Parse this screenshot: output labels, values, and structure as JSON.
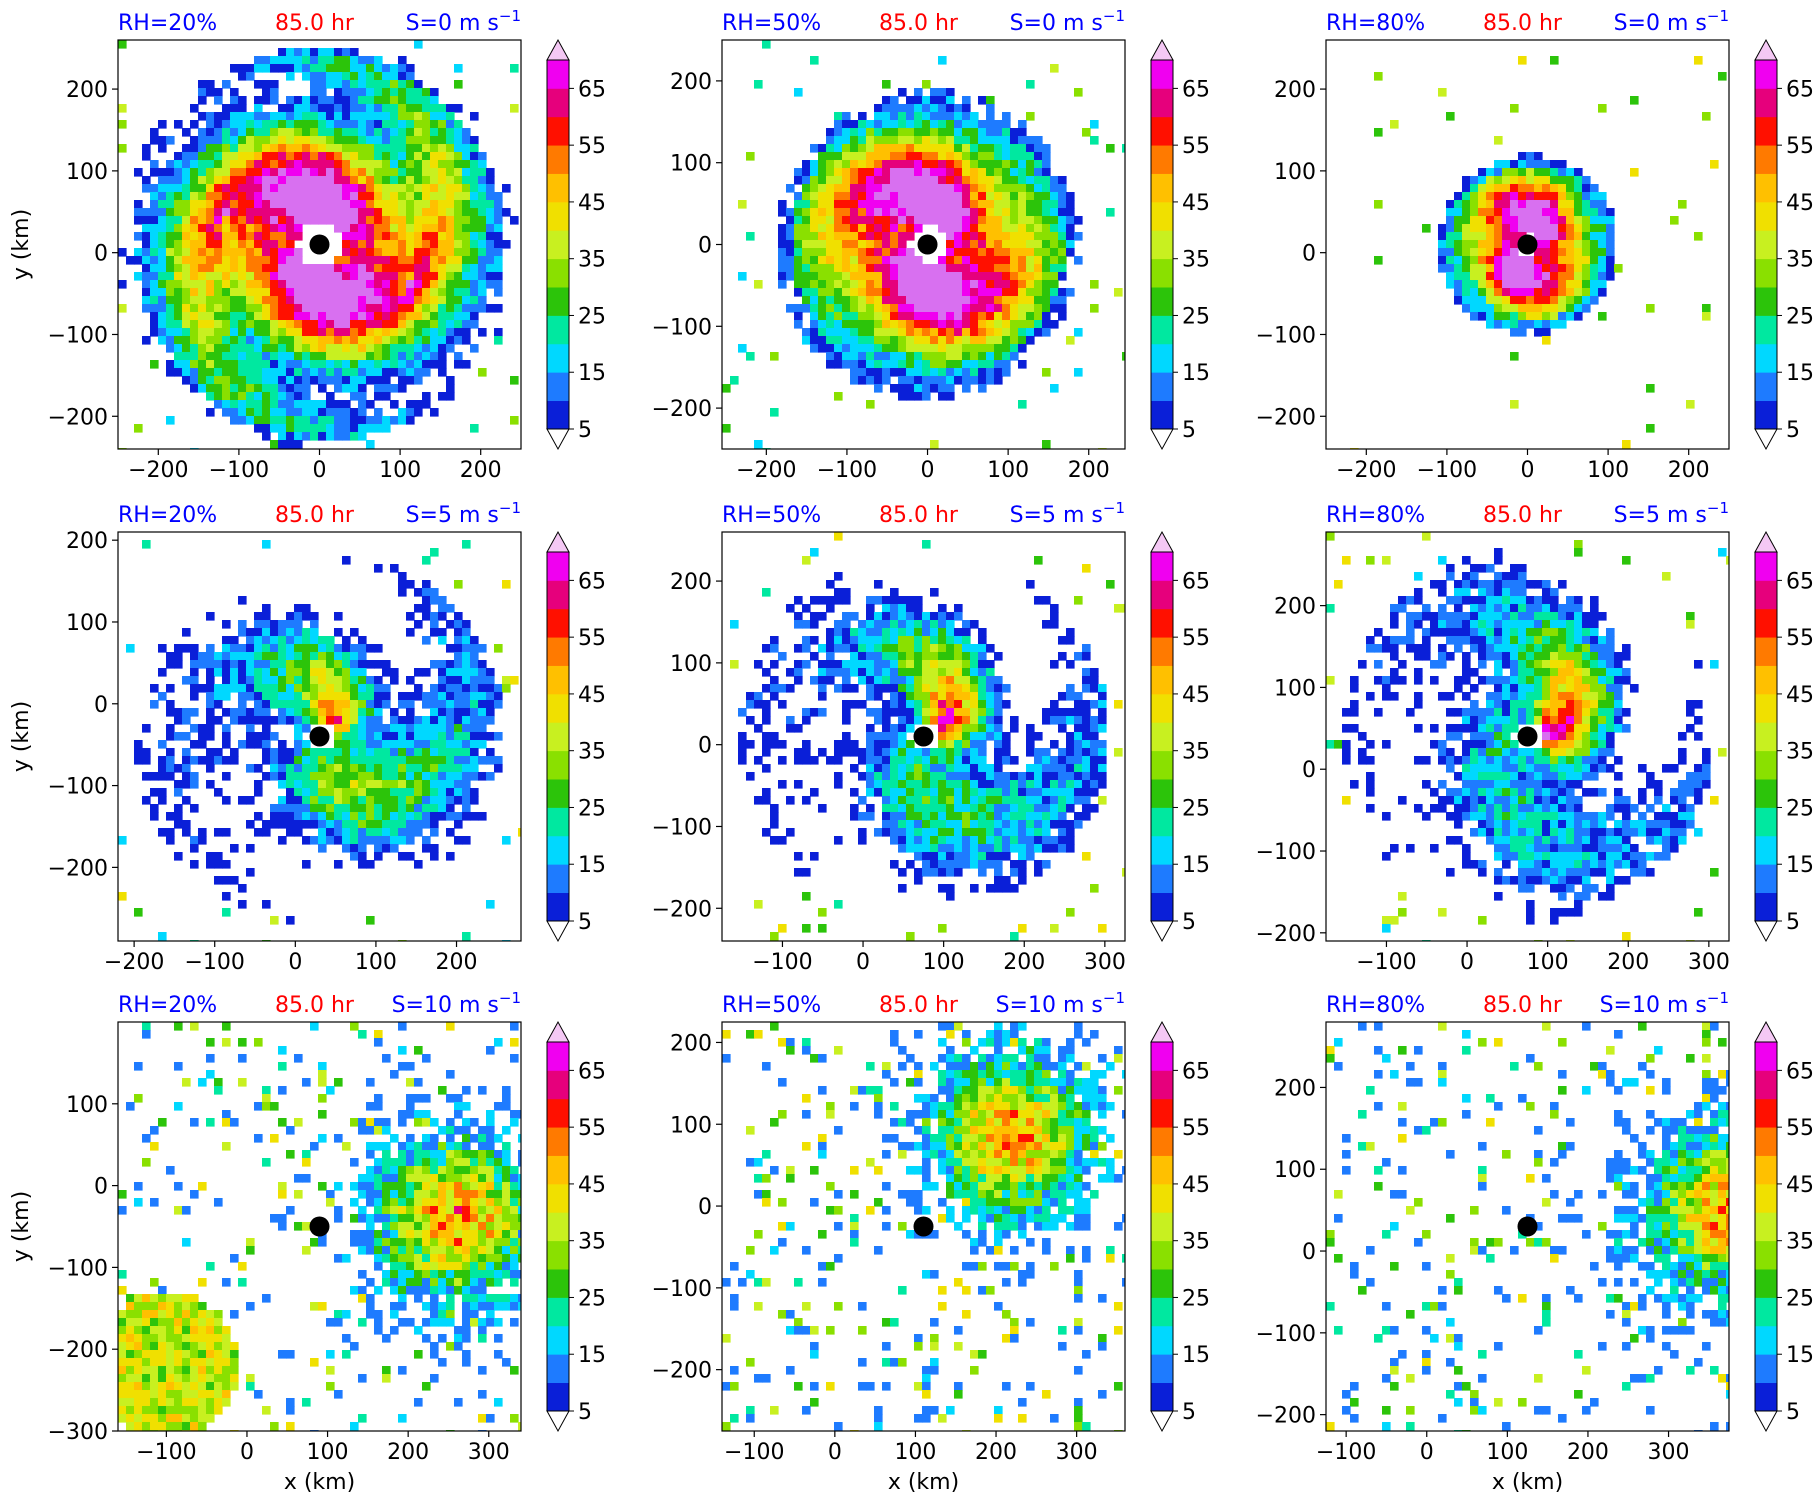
{
  "figure": {
    "rows": [
      {
        "shear_label": "S=0 m s",
        "shear_exp": "−1"
      },
      {
        "shear_label": "S=5 m s",
        "shear_exp": "−1"
      },
      {
        "shear_label": "S=10 m s",
        "shear_exp": "−1"
      }
    ],
    "cols": [
      {
        "rh_label": "RH=20%"
      },
      {
        "rh_label": "RH=50%"
      },
      {
        "rh_label": "RH=80%"
      }
    ],
    "time_label": "85.0 hr",
    "xlabel": "x (km)",
    "ylabel": "y (km)",
    "colorbar": {
      "levels": [
        5,
        10,
        15,
        20,
        25,
        30,
        35,
        40,
        45,
        50,
        55,
        60,
        65,
        70
      ],
      "tick_labels": [
        "5",
        "15",
        "25",
        "35",
        "45",
        "55",
        "65"
      ],
      "colors": [
        "#003b2a",
        "#0a1fd8",
        "#1e7bff",
        "#00d8ff",
        "#00e8a0",
        "#2cc40a",
        "#8ae000",
        "#c8f020",
        "#f0e000",
        "#ffc000",
        "#ff7a00",
        "#ff1000",
        "#e6007c",
        "#f000f0",
        "#d870f0",
        "#f4c8f4"
      ]
    },
    "colors": {
      "rh_label": "#0000ff",
      "time_label": "#ff0000",
      "shear_label": "#0000ff",
      "center_marker": "#000000"
    }
  },
  "chart_data": [
    {
      "type": "heatmap",
      "rh": "RH=20%",
      "shear": "S=0 m s−1",
      "time": "85.0 hr",
      "xlim": [
        -250,
        250
      ],
      "ylim": [
        -240,
        260
      ],
      "x_ticks": [
        -200,
        -100,
        0,
        100,
        200
      ],
      "y_ticks": [
        -200,
        -100,
        0,
        100,
        200
      ],
      "center": [
        0,
        10
      ],
      "xlabel": "",
      "ylabel": "y (km)"
    },
    {
      "type": "heatmap",
      "rh": "RH=50%",
      "shear": "S=0 m s−1",
      "time": "85.0 hr",
      "xlim": [
        -255,
        245
      ],
      "ylim": [
        -250,
        250
      ],
      "x_ticks": [
        -200,
        -100,
        0,
        100,
        200
      ],
      "y_ticks": [
        -200,
        -100,
        0,
        100,
        200
      ],
      "center": [
        0,
        0
      ],
      "xlabel": "",
      "ylabel": ""
    },
    {
      "type": "heatmap",
      "rh": "RH=80%",
      "shear": "S=0 m s−1",
      "time": "85.0 hr",
      "xlim": [
        -250,
        250
      ],
      "ylim": [
        -240,
        260
      ],
      "x_ticks": [
        -200,
        -100,
        0,
        100,
        200
      ],
      "y_ticks": [
        -200,
        -100,
        0,
        100,
        200
      ],
      "center": [
        0,
        10
      ],
      "xlabel": "",
      "ylabel": ""
    },
    {
      "type": "heatmap",
      "rh": "RH=20%",
      "shear": "S=5 m s−1",
      "time": "85.0 hr",
      "xlim": [
        -220,
        280
      ],
      "ylim": [
        -290,
        210
      ],
      "x_ticks": [
        -200,
        -100,
        0,
        100,
        200
      ],
      "y_ticks": [
        -200,
        -100,
        0,
        100,
        200
      ],
      "center": [
        30,
        -40
      ],
      "xlabel": "",
      "ylabel": "y (km)"
    },
    {
      "type": "heatmap",
      "rh": "RH=50%",
      "shear": "S=5 m s−1",
      "time": "85.0 hr",
      "xlim": [
        -175,
        325
      ],
      "ylim": [
        -240,
        260
      ],
      "x_ticks": [
        -100,
        0,
        100,
        200,
        300
      ],
      "y_ticks": [
        -200,
        -100,
        0,
        100,
        200
      ],
      "center": [
        75,
        10
      ],
      "xlabel": "",
      "ylabel": ""
    },
    {
      "type": "heatmap",
      "rh": "RH=80%",
      "shear": "S=5 m s−1",
      "time": "85.0 hr",
      "xlim": [
        -175,
        325
      ],
      "ylim": [
        -210,
        290
      ],
      "x_ticks": [
        -100,
        0,
        100,
        200,
        300
      ],
      "y_ticks": [
        -200,
        -100,
        0,
        100,
        200
      ],
      "center": [
        75,
        40
      ],
      "xlabel": "",
      "ylabel": ""
    },
    {
      "type": "heatmap",
      "rh": "RH=20%",
      "shear": "S=10 m s−1",
      "time": "85.0 hr",
      "xlim": [
        -160,
        340
      ],
      "ylim": [
        -300,
        200
      ],
      "x_ticks": [
        -100,
        0,
        100,
        200,
        300
      ],
      "y_ticks": [
        -300,
        -200,
        -100,
        0,
        100
      ],
      "center": [
        90,
        -50
      ],
      "xlabel": "x (km)",
      "ylabel": "y (km)"
    },
    {
      "type": "heatmap",
      "rh": "RH=50%",
      "shear": "S=10 m s−1",
      "time": "85.0 hr",
      "xlim": [
        -140,
        360
      ],
      "ylim": [
        -275,
        225
      ],
      "x_ticks": [
        -100,
        0,
        100,
        200,
        300
      ],
      "y_ticks": [
        -200,
        -100,
        0,
        100,
        200
      ],
      "center": [
        110,
        -25
      ],
      "xlabel": "x (km)",
      "ylabel": ""
    },
    {
      "type": "heatmap",
      "rh": "RH=80%",
      "shear": "S=10 m s−1",
      "time": "85.0 hr",
      "xlim": [
        -125,
        375
      ],
      "ylim": [
        -220,
        280
      ],
      "x_ticks": [
        -100,
        0,
        100,
        200,
        300
      ],
      "y_ticks": [
        -200,
        -100,
        0,
        100,
        200
      ],
      "center": [
        125,
        30
      ],
      "xlabel": "x (km)",
      "ylabel": ""
    }
  ]
}
